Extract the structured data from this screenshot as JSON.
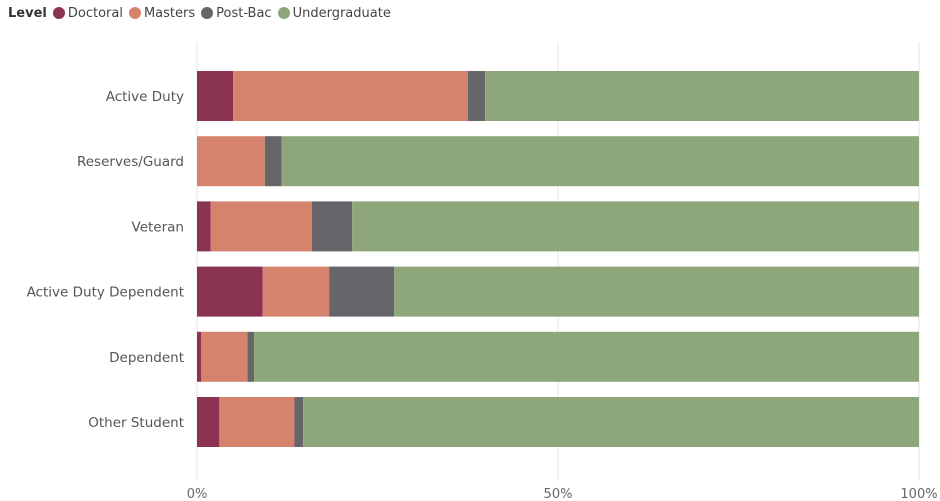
{
  "chart_data": {
    "type": "bar",
    "orientation": "horizontal",
    "stacked": "100%",
    "legend": {
      "title": "Level",
      "position": "top-left"
    },
    "categories": [
      "Active Duty",
      "Reserves/Guard",
      "Veteran",
      "Active Duty Dependent",
      "Dependent",
      "Other Student"
    ],
    "series": [
      {
        "name": "Doctoral",
        "color": "#8B3353",
        "values": [
          5.0,
          0.0,
          1.9,
          9.1,
          0.6,
          3.1
        ]
      },
      {
        "name": "Masters",
        "color": "#D6836E",
        "values": [
          32.5,
          9.4,
          14.0,
          9.2,
          6.4,
          10.4
        ]
      },
      {
        "name": "Post-Bac",
        "color": "#66656A",
        "values": [
          2.4,
          2.3,
          5.6,
          9.0,
          0.9,
          1.2
        ]
      },
      {
        "name": "Undergraduate",
        "color": "#8EA77A",
        "values": [
          60.1,
          88.3,
          78.5,
          72.7,
          92.1,
          85.3
        ]
      }
    ],
    "x_ticks": [
      "0%",
      "50%",
      "100%"
    ],
    "xlim": [
      0,
      100
    ],
    "grid": true
  }
}
